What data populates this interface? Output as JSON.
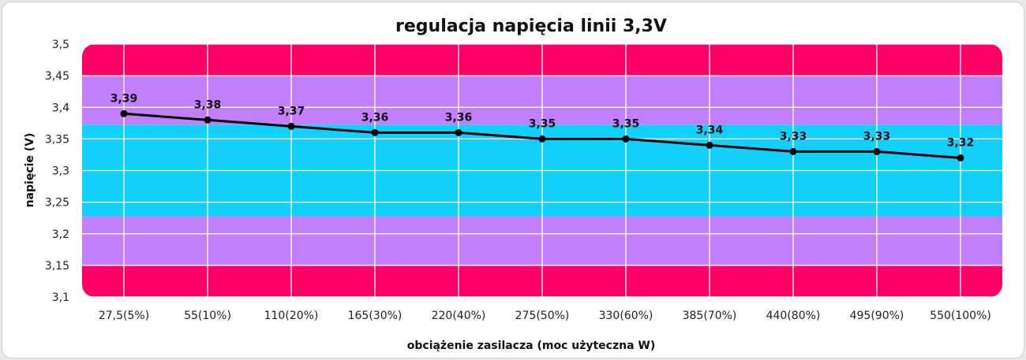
{
  "chart_data": {
    "type": "line",
    "title": "regulacja napięcia linii 3,3V",
    "xlabel": "obciążenie zasilacza (moc użyteczna W)",
    "ylabel": "napięcie (V)",
    "ylim": [
      3.1,
      3.5
    ],
    "y_ticks": [
      3.1,
      3.15,
      3.2,
      3.25,
      3.3,
      3.35,
      3.4,
      3.45,
      3.5
    ],
    "y_tick_labels": [
      "3,1",
      "3,15",
      "3,2",
      "3,25",
      "3,3",
      "3,35",
      "3,4",
      "3,45",
      "3,5"
    ],
    "grid": true,
    "categories": [
      "27,5(5%)",
      "55(10%)",
      "110(20%)",
      "165(30%)",
      "220(40%)",
      "275(50%)",
      "330(60%)",
      "385(70%)",
      "440(80%)",
      "495(90%)",
      "550(100%)"
    ],
    "series": [
      {
        "values": [
          3.39,
          3.38,
          3.37,
          3.36,
          3.36,
          3.35,
          3.35,
          3.34,
          3.33,
          3.33,
          3.32
        ],
        "labels": [
          "3,39",
          "3,38",
          "3,37",
          "3,36",
          "3,36",
          "3,35",
          "3,35",
          "3,34",
          "3,33",
          "3,33",
          "3,32"
        ],
        "color": "#000000"
      }
    ],
    "bands": [
      {
        "from": 3.1,
        "to": 3.15,
        "color": "#ff0066"
      },
      {
        "from": 3.15,
        "to": 3.2275,
        "color": "#c17ffb"
      },
      {
        "from": 3.2275,
        "to": 3.3725,
        "color": "#12cffb"
      },
      {
        "from": 3.3725,
        "to": 3.45,
        "color": "#c17ffb"
      },
      {
        "from": 3.45,
        "to": 3.5,
        "color": "#ff0066"
      }
    ]
  }
}
